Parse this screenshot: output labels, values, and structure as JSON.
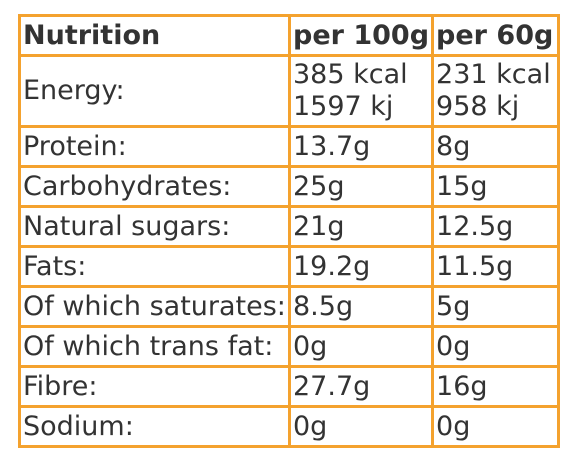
{
  "header": {
    "label": "Nutrition",
    "per100": "per 100g",
    "per60": "per 60g"
  },
  "energy": {
    "label": "Energy:",
    "per100_kcal": "385 kcal",
    "per100_kj": "1597 kj",
    "per60_kcal": "231 kcal",
    "per60_kj": "958 kj"
  },
  "rows": [
    {
      "label": "Protein:",
      "per100": "13.7g",
      "per60": "8g"
    },
    {
      "label": "Carbohydrates:",
      "per100": "25g",
      "per60": "15g"
    },
    {
      "label": "Natural sugars:",
      "per100": "21g",
      "per60": "12.5g"
    },
    {
      "label": "Fats:",
      "per100": "19.2g",
      "per60": "11.5g"
    },
    {
      "label": "Of which saturates:",
      "per100": "8.5g",
      "per60": "5g"
    },
    {
      "label": "Of which trans fat:",
      "per100": "0g",
      "per60": "0g"
    },
    {
      "label": "Fibre:",
      "per100": "27.7g",
      "per60": "16g"
    },
    {
      "label": "Sodium:",
      "per100": "0g",
      "per60": "0g"
    }
  ],
  "colors": {
    "border": "#F4A22E",
    "text": "#333333",
    "background": "#FFFFFF"
  }
}
